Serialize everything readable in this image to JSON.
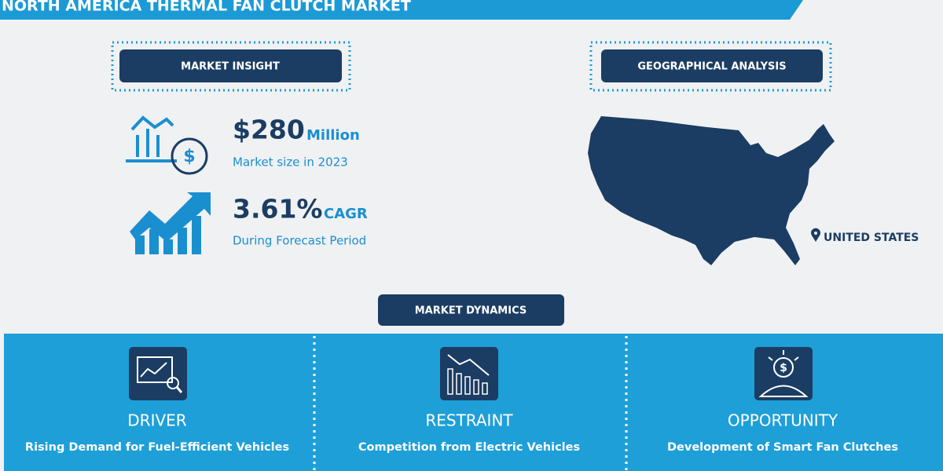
{
  "header": {
    "title": "NORTH AMERICA THERMAL FAN CLUTCH MARKET"
  },
  "market_insight": {
    "heading": "MARKET INSIGHT",
    "size": {
      "value": "$280",
      "unit": "Million",
      "label": "Market size in 2023"
    },
    "cagr": {
      "value": "3.61%",
      "unit": "CAGR",
      "label": "During Forecast Period"
    }
  },
  "geographical_analysis": {
    "heading": "GEOGRAPHICAL ANALYSIS",
    "region": "UNITED STATES"
  },
  "market_dynamics": {
    "heading": "MARKET DYNAMICS",
    "items": [
      {
        "title": "DRIVER",
        "text": "Rising Demand for Fuel-Efficient Vehicles"
      },
      {
        "title": "RESTRAINT",
        "text": "Competition from Electric Vehicles"
      },
      {
        "title": "OPPORTUNITY",
        "text": "Development of Smart Fan Clutches"
      }
    ]
  }
}
